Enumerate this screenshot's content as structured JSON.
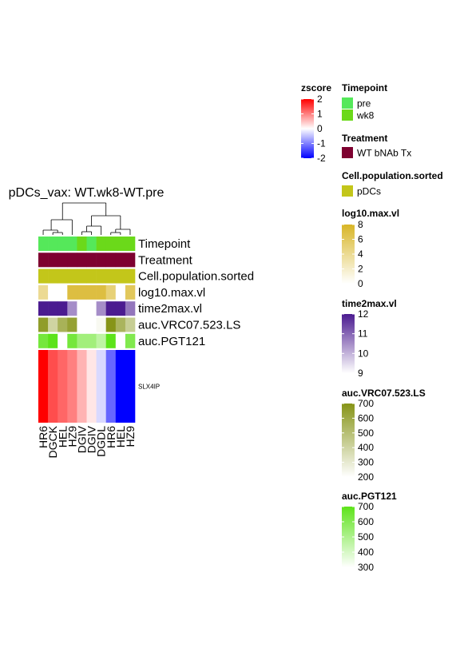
{
  "chart_data": {
    "type": "heatmap",
    "title": "pDCs_vax: WT.wk8-WT.pre",
    "columns": [
      "HR6",
      "DGCK",
      "HEL",
      "HZ9",
      "DGIV",
      "DGIV",
      "DGDL",
      "HR6",
      "HEL",
      "HZ9"
    ],
    "rows": [
      "SLX4IP"
    ],
    "values": [
      [
        2.0,
        1.4,
        1.2,
        1.0,
        0.6,
        0.2,
        -0.3,
        -1.2,
        -2.0,
        -2.0
      ]
    ],
    "color_scale": {
      "name": "zscore",
      "min": -2,
      "max": 2,
      "low": "#0000FF",
      "mid": "#FFFFFF",
      "high": "#FF0000",
      "ticks": [
        "2",
        "1",
        "0",
        "-1",
        "-2"
      ]
    },
    "annotations": [
      {
        "name": "Timepoint",
        "kind": "categorical",
        "values": [
          "pre",
          "pre",
          "pre",
          "pre",
          "wk8",
          "pre",
          "wk8",
          "wk8",
          "wk8",
          "wk8"
        ],
        "colors": {
          "pre": "#55E85A",
          "wk8": "#6BD91A"
        }
      },
      {
        "name": "Treatment",
        "kind": "categorical",
        "values": [
          "WT bNAb Tx",
          "WT bNAb Tx",
          "WT bNAb Tx",
          "WT bNAb Tx",
          "WT bNAb Tx",
          "WT bNAb Tx",
          "WT bNAb Tx",
          "WT bNAb Tx",
          "WT bNAb Tx",
          "WT bNAb Tx"
        ],
        "colors": {
          "WT bNAb Tx": "#7E0130"
        }
      },
      {
        "name": "Cell.population.sorted",
        "kind": "categorical",
        "values": [
          "pDCs",
          "pDCs",
          "pDCs",
          "pDCs",
          "pDCs",
          "pDCs",
          "pDCs",
          "pDCs",
          "pDCs",
          "pDCs"
        ],
        "colors": {
          "pDCs": "#C3C61A"
        }
      },
      {
        "name": "log10.max.vl",
        "kind": "continuous",
        "values": [
          4,
          0,
          0,
          7,
          7,
          7,
          7,
          5,
          0,
          6
        ],
        "range": [
          0,
          8
        ],
        "low": "#FFFFFF",
        "high": "#D8B526",
        "ticks": [
          "8",
          "6",
          "4",
          "2",
          "0"
        ]
      },
      {
        "name": "time2max.vl",
        "kind": "continuous",
        "values": [
          12,
          12,
          12,
          10.5,
          9,
          9,
          10.5,
          12,
          12,
          10.8
        ],
        "range": [
          9,
          12
        ],
        "low": "#FFFFFF",
        "high": "#4B1B90",
        "ticks": [
          "12",
          "11",
          "10",
          "9"
        ]
      },
      {
        "name": "auc.VRC07.523.LS",
        "kind": "continuous",
        "values": [
          660,
          400,
          560,
          640,
          200,
          200,
          230,
          720,
          550,
          430
        ],
        "range": [
          200,
          700
        ],
        "low": "#FFFFFF",
        "high": "#869417",
        "ticks": [
          "700",
          "600",
          "500",
          "400",
          "300",
          "200"
        ]
      },
      {
        "name": "auc.PGT121",
        "kind": "continuous",
        "values": [
          640,
          720,
          300,
          640,
          530,
          530,
          460,
          720,
          300,
          610
        ],
        "range": [
          300,
          700
        ],
        "low": "#FFFFFF",
        "high": "#5DE31A",
        "ticks": [
          "700",
          "600",
          "500",
          "400",
          "300"
        ]
      }
    ],
    "legends": [
      {
        "title": "Timepoint",
        "items": [
          "pre",
          "wk8"
        ]
      },
      {
        "title": "Treatment",
        "items": [
          "WT bNAb Tx"
        ]
      },
      {
        "title": "Cell.population.sorted",
        "items": [
          "pDCs"
        ]
      }
    ],
    "dendrogram": "top"
  }
}
